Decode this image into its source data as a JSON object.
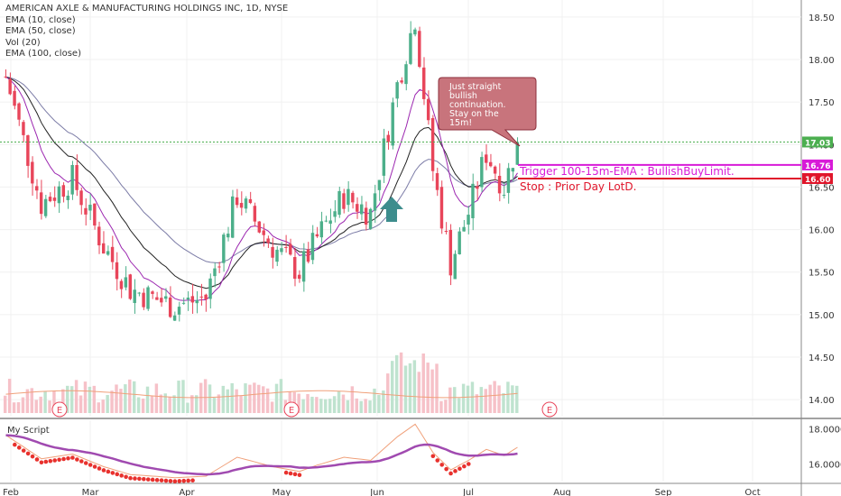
{
  "legend": {
    "title": "AMERICAN AXLE & MANUFACTURING HOLDINGS INC, 1D, NYSE",
    "ema10": "EMA (10, close)",
    "ema50": "EMA (50, close)",
    "vol": "Vol (20)",
    "ema100": "EMA (100, close)"
  },
  "script_pane": {
    "label": "My Script"
  },
  "callout": {
    "text": [
      "Just straight",
      "bullish",
      "continuation.",
      "Stay on the",
      "15m!"
    ]
  },
  "lines": {
    "trigger_label": "Trigger 100-15m-EMA : BullishBuyLimit.",
    "stop_label": "Stop : Prior Day LotD."
  },
  "earnings_marker": "E",
  "colors": {
    "up": "#4caf8a",
    "down": "#e8455a",
    "ema10": "#9c27b0",
    "ema50": "#222222",
    "ema100": "#7b7ba6",
    "vol_ma": "#f0a07a",
    "trigger": "#d81ad8",
    "stop": "#e0162b",
    "callout_fill": "#c8747c",
    "current": "#4caf50"
  },
  "chart_data": {
    "type": "candlestick",
    "ylim": [
      13.8,
      18.7
    ],
    "y_ticks": [
      "18.50",
      "18.00",
      "17.50",
      "17.00",
      "16.50",
      "16.00",
      "15.50",
      "15.00",
      "14.50",
      "14.00"
    ],
    "x_ticks": [
      "Feb",
      "Mar",
      "Apr",
      "May",
      "Jun",
      "Jul",
      "Aug",
      "Sep",
      "Oct"
    ],
    "price_badges": [
      {
        "value": "17.03",
        "color": "#4caf50"
      },
      {
        "value": "16.76",
        "color": "#d81ad8"
      },
      {
        "value": "16.60",
        "color": "#e0162b"
      }
    ],
    "last_price": 17.03,
    "trigger_level": 16.76,
    "stop_level": 16.6,
    "script_ylim": [
      15.0,
      18.5
    ],
    "script_ticks": [
      "18.0000",
      "16.0000"
    ]
  }
}
